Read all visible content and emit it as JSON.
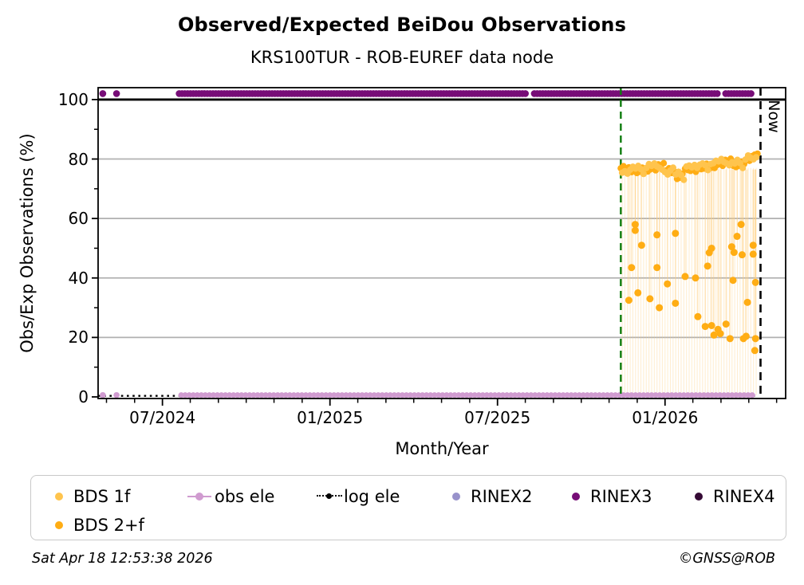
{
  "header": {
    "title": "Observed/Expected BeiDou Observations",
    "subtitle": "KRS100TUR - ROB-EUREF data node"
  },
  "footer": {
    "timestamp": "Sat Apr 18 12:53:38 2026",
    "credit": "©GNSS@ROB"
  },
  "chart_data": {
    "type": "scatter",
    "title": "Observed/Expected BeiDou Observations",
    "subtitle": "KRS100TUR - ROB-EUREF data node",
    "xlabel": "Month/Year",
    "ylabel": "Obs/Exp Observations (%)",
    "now_label": "Now",
    "legend_position": "bottom",
    "grid": "horizontal-only",
    "xlim_years": [
      2024.308,
      2026.36
    ],
    "ylim": [
      -0.54,
      104.0
    ],
    "xticks_major": [
      {
        "t": 2024.5,
        "label": "07/2024"
      },
      {
        "t": 2025.0,
        "label": "01/2025"
      },
      {
        "t": 2025.5,
        "label": "07/2025"
      },
      {
        "t": 2026.0,
        "label": "01/2026"
      }
    ],
    "xticks_minor": [
      2024.333,
      2024.417,
      2024.583,
      2024.667,
      2024.75,
      2024.833,
      2024.917,
      2025.083,
      2025.167,
      2025.25,
      2025.333,
      2025.417,
      2025.583,
      2025.667,
      2025.75,
      2025.833,
      2025.917,
      2026.083,
      2026.167,
      2026.25,
      2026.333
    ],
    "yticks_major": [
      0,
      20,
      40,
      60,
      80,
      100
    ],
    "yticks_minor": [
      10,
      30,
      50,
      70,
      90
    ],
    "grid_y": [
      20,
      40,
      60,
      80
    ],
    "hline_y": 100,
    "now_line_t": 2026.285,
    "event_line_t": 2025.868,
    "colors": {
      "bds1f": "#FFC44D",
      "bds2f": "#FFAD14",
      "obs_ele": "#D09BD0",
      "log_ele": "#000000",
      "rinex2": "#9892CB",
      "rinex3": "#770D77",
      "rinex4": "#350A35",
      "event_line": "#0E7C0E",
      "now_line": "#000000",
      "grid": "#B0B0B0",
      "stems": "#FFCF7F"
    },
    "series": {
      "rinex3": {
        "name": "RINEX3",
        "y": 102,
        "segments": [
          [
            2024.55,
            2025.586
          ],
          [
            2025.61,
            2026.164
          ],
          [
            2026.181,
            2026.26
          ]
        ],
        "points_t": [
          2024.322,
          2024.363
        ]
      },
      "obs_ele": {
        "name": "obs ele",
        "y": 0.6,
        "segments": [
          [
            2024.556,
            2026.27
          ]
        ],
        "points_t": [
          2024.322,
          2024.363
        ]
      },
      "log_ele": {
        "name": "log ele",
        "y": 0.35,
        "segments": [
          [
            2024.308,
            2026.27
          ]
        ]
      },
      "bds1f": {
        "name": "BDS 1f",
        "band": [
          [
            2025.872,
            75.4
          ],
          [
            2025.88,
            75.9
          ],
          [
            2025.888,
            75.1
          ],
          [
            2025.896,
            76.4
          ],
          [
            2025.904,
            77.4
          ],
          [
            2025.912,
            76.8
          ],
          [
            2025.92,
            77.7
          ],
          [
            2025.928,
            76.6
          ],
          [
            2025.936,
            75.0
          ],
          [
            2025.944,
            77.0
          ],
          [
            2025.952,
            78.3
          ],
          [
            2025.96,
            77.7
          ],
          [
            2025.968,
            78.5
          ],
          [
            2025.976,
            77.5
          ],
          [
            2025.984,
            77.0
          ],
          [
            2025.992,
            76.4
          ],
          [
            2026.0,
            75.6
          ],
          [
            2026.008,
            74.8
          ],
          [
            2026.016,
            76.1
          ],
          [
            2026.024,
            77.1
          ],
          [
            2026.032,
            74.8
          ],
          [
            2026.04,
            75.7
          ],
          [
            2026.048,
            74.6
          ],
          [
            2026.056,
            73.0
          ],
          [
            2026.064,
            77.5
          ],
          [
            2026.072,
            77.8
          ],
          [
            2026.08,
            77.2
          ],
          [
            2026.088,
            78.0
          ],
          [
            2026.096,
            77.0
          ],
          [
            2026.104,
            78.1
          ],
          [
            2026.112,
            78.5
          ],
          [
            2026.12,
            77.9
          ],
          [
            2026.128,
            76.3
          ],
          [
            2026.136,
            78.3
          ],
          [
            2026.144,
            78.6
          ],
          [
            2026.152,
            79.4
          ],
          [
            2026.16,
            79.2
          ],
          [
            2026.168,
            80.0
          ],
          [
            2026.176,
            79.0
          ],
          [
            2026.184,
            78.5
          ],
          [
            2026.192,
            77.9
          ],
          [
            2026.2,
            78.9
          ],
          [
            2026.208,
            78.5
          ],
          [
            2026.216,
            79.7
          ],
          [
            2026.224,
            78.6
          ],
          [
            2026.232,
            77.0
          ],
          [
            2026.24,
            79.8
          ],
          [
            2026.248,
            81.2
          ],
          [
            2026.256,
            80.4
          ],
          [
            2026.264,
            79.9
          ],
          [
            2026.272,
            80.6
          ]
        ]
      },
      "bds2f": {
        "name": "BDS 2+f",
        "band": [
          [
            2025.868,
            76.9
          ],
          [
            2025.876,
            77.6
          ],
          [
            2025.884,
            76.5
          ],
          [
            2025.892,
            77.2
          ],
          [
            2025.9,
            75.6
          ],
          [
            2025.908,
            76.1
          ],
          [
            2025.916,
            75.3
          ],
          [
            2025.924,
            75.7
          ],
          [
            2025.932,
            77.1
          ],
          [
            2025.94,
            76.3
          ],
          [
            2025.948,
            75.8
          ],
          [
            2025.956,
            76.5
          ],
          [
            2025.964,
            77.2
          ],
          [
            2025.972,
            76.2
          ],
          [
            2025.98,
            78.2
          ],
          [
            2025.988,
            77.9
          ],
          [
            2025.996,
            78.6
          ],
          [
            2026.004,
            76.2
          ],
          [
            2026.012,
            76.9
          ],
          [
            2026.02,
            75.3
          ],
          [
            2026.028,
            75.8
          ],
          [
            2026.036,
            73.3
          ],
          [
            2026.044,
            73.7
          ],
          [
            2026.052,
            75.1
          ],
          [
            2026.06,
            76.8
          ],
          [
            2026.068,
            76.3
          ],
          [
            2026.076,
            76.0
          ],
          [
            2026.084,
            76.7
          ],
          [
            2026.092,
            75.7
          ],
          [
            2026.1,
            77.4
          ],
          [
            2026.108,
            76.6
          ],
          [
            2026.116,
            76.8
          ],
          [
            2026.124,
            78.4
          ],
          [
            2026.132,
            77.6
          ],
          [
            2026.14,
            77.1
          ],
          [
            2026.148,
            77.0
          ],
          [
            2026.156,
            78.0
          ],
          [
            2026.164,
            78.7
          ],
          [
            2026.172,
            77.7
          ],
          [
            2026.18,
            79.7
          ],
          [
            2026.188,
            79.4
          ],
          [
            2026.196,
            80.1
          ],
          [
            2026.204,
            77.7
          ],
          [
            2026.212,
            77.3
          ],
          [
            2026.22,
            77.7
          ],
          [
            2026.228,
            79.1
          ],
          [
            2026.236,
            78.3
          ],
          [
            2026.244,
            79.6
          ],
          [
            2026.252,
            79.4
          ],
          [
            2026.26,
            81.0
          ],
          [
            2026.268,
            81.5
          ],
          [
            2026.276,
            81.8
          ]
        ],
        "low": [
          [
            2025.892,
            32.5
          ],
          [
            2025.9,
            43.5
          ],
          [
            2025.911,
            58
          ],
          [
            2025.911,
            56
          ],
          [
            2025.919,
            35
          ],
          [
            2025.93,
            51
          ],
          [
            2025.955,
            33
          ],
          [
            2025.976,
            54.5
          ],
          [
            2025.976,
            43.5
          ],
          [
            2025.983,
            30
          ],
          [
            2026.007,
            38
          ],
          [
            2026.031,
            55
          ],
          [
            2026.031,
            31.5
          ],
          [
            2026.06,
            40.5
          ],
          [
            2026.091,
            40
          ],
          [
            2026.098,
            27
          ],
          [
            2026.12,
            23.7
          ],
          [
            2026.127,
            44
          ],
          [
            2026.132,
            48.5
          ],
          [
            2026.139,
            50
          ],
          [
            2026.139,
            24
          ],
          [
            2026.146,
            20.8
          ],
          [
            2026.158,
            22.7
          ],
          [
            2026.165,
            21.3
          ],
          [
            2026.182,
            24.5
          ],
          [
            2026.194,
            19.6
          ],
          [
            2026.199,
            50.5
          ],
          [
            2026.203,
            39.2
          ],
          [
            2026.206,
            48.6
          ],
          [
            2026.215,
            54
          ],
          [
            2026.227,
            58
          ],
          [
            2026.23,
            47.8
          ],
          [
            2026.234,
            19.6
          ],
          [
            2026.242,
            20.4
          ],
          [
            2026.246,
            31.8
          ],
          [
            2026.263,
            51
          ],
          [
            2026.263,
            48
          ],
          [
            2026.27,
            38.5
          ],
          [
            2026.27,
            19.6
          ],
          [
            2026.268,
            15.6
          ]
        ]
      },
      "stems": {
        "to_zero_t": [
          2025.872,
          2025.88,
          2025.888,
          2025.896,
          2025.904,
          2025.912,
          2025.92,
          2025.928,
          2025.936,
          2025.944,
          2025.952,
          2025.96,
          2025.968,
          2025.976,
          2025.984,
          2025.992,
          2026.0,
          2026.008,
          2026.016,
          2026.024,
          2026.032,
          2026.04,
          2026.048,
          2026.056,
          2026.064,
          2026.072,
          2026.08,
          2026.088,
          2026.096,
          2026.104,
          2026.112,
          2026.12,
          2026.128,
          2026.136,
          2026.144,
          2026.152,
          2026.16,
          2026.168,
          2026.176,
          2026.184,
          2026.192,
          2026.2,
          2026.208,
          2026.216,
          2026.224,
          2026.232,
          2026.24,
          2026.248,
          2026.256,
          2026.264,
          2026.272
        ]
      }
    }
  },
  "legend": {
    "items": [
      {
        "label": "BDS 1f",
        "marker": "dot",
        "color": "#FFC44D",
        "row": 1
      },
      {
        "label": "obs ele",
        "marker": "line-dot",
        "color": "#D09BD0",
        "row": 1
      },
      {
        "label": "log ele",
        "marker": "dotted-line",
        "color": "#000000",
        "row": 1
      },
      {
        "label": "RINEX2",
        "marker": "dot",
        "color": "#9892CB",
        "row": 1
      },
      {
        "label": "RINEX3",
        "marker": "dot",
        "color": "#770D77",
        "row": 1
      },
      {
        "label": "RINEX4",
        "marker": "dot",
        "color": "#350A35",
        "row": 1
      },
      {
        "label": "BDS 2+f",
        "marker": "dot",
        "color": "#FFAD14",
        "row": 2
      }
    ]
  }
}
